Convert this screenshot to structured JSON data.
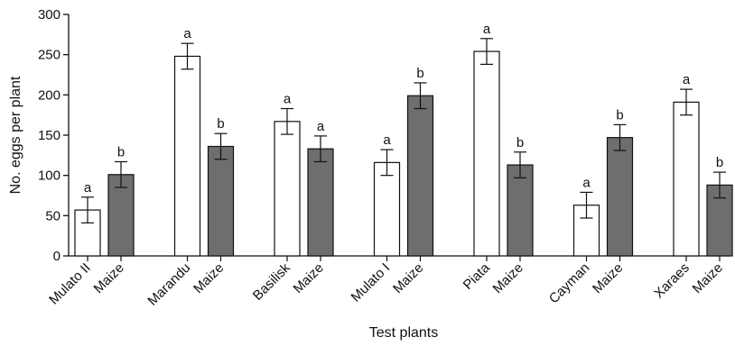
{
  "chart_data": {
    "type": "bar",
    "title": "",
    "xlabel": "Test plants",
    "ylabel": "No. eggs per plant",
    "ylim": [
      0,
      300
    ],
    "yticks": [
      0,
      50,
      100,
      150,
      200,
      250,
      300
    ],
    "grid": false,
    "legend": "none",
    "groups": [
      {
        "bars": [
          {
            "label": "Mulato II",
            "value": 57,
            "error": 16,
            "letter": "a",
            "fill": "#ffffff"
          },
          {
            "label": "Maize",
            "value": 101,
            "error": 16,
            "letter": "b",
            "fill": "#6e6e6e"
          }
        ]
      },
      {
        "bars": [
          {
            "label": "Marandu",
            "value": 248,
            "error": 16,
            "letter": "a",
            "fill": "#ffffff"
          },
          {
            "label": "Maize",
            "value": 136,
            "error": 16,
            "letter": "b",
            "fill": "#6e6e6e"
          }
        ]
      },
      {
        "bars": [
          {
            "label": "Basilisk",
            "value": 167,
            "error": 16,
            "letter": "a",
            "fill": "#ffffff"
          },
          {
            "label": "Maize",
            "value": 133,
            "error": 16,
            "letter": "a",
            "fill": "#6e6e6e"
          }
        ]
      },
      {
        "bars": [
          {
            "label": "Mulato I",
            "value": 116,
            "error": 16,
            "letter": "a",
            "fill": "#ffffff"
          },
          {
            "label": "Maize",
            "value": 199,
            "error": 16,
            "letter": "b",
            "fill": "#6e6e6e"
          }
        ]
      },
      {
        "bars": [
          {
            "label": "Piata",
            "value": 254,
            "error": 16,
            "letter": "a",
            "fill": "#ffffff"
          },
          {
            "label": "Maize",
            "value": 113,
            "error": 16,
            "letter": "b",
            "fill": "#6e6e6e"
          }
        ]
      },
      {
        "bars": [
          {
            "label": "Cayman",
            "value": 63,
            "error": 16,
            "letter": "a",
            "fill": "#ffffff"
          },
          {
            "label": "Maize",
            "value": 147,
            "error": 16,
            "letter": "b",
            "fill": "#6e6e6e"
          }
        ]
      },
      {
        "bars": [
          {
            "label": "Xaraes",
            "value": 191,
            "error": 16,
            "letter": "a",
            "fill": "#ffffff"
          },
          {
            "label": "Maize",
            "value": 88,
            "error": 16,
            "letter": "b",
            "fill": "#6e6e6e"
          }
        ]
      }
    ]
  }
}
